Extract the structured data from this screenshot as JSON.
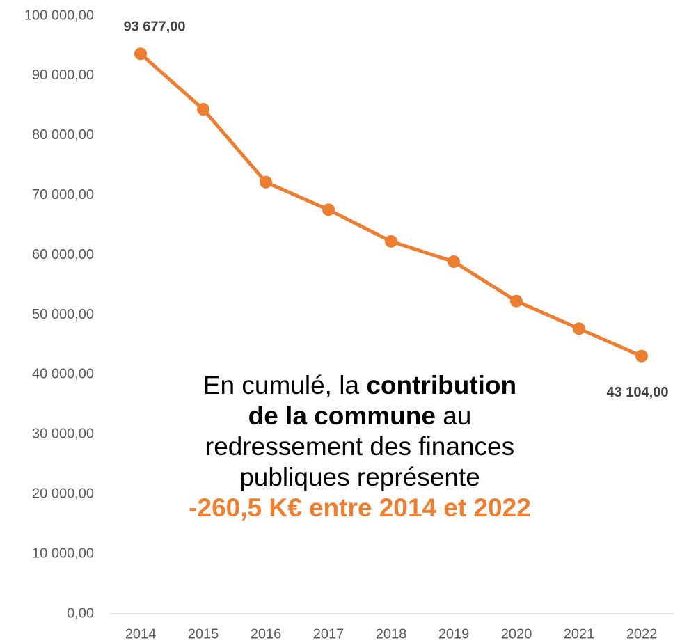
{
  "chart_data": {
    "type": "line",
    "categories": [
      "2014",
      "2015",
      "2016",
      "2017",
      "2018",
      "2019",
      "2020",
      "2021",
      "2022"
    ],
    "series": [
      {
        "color": "#ed7d31",
        "values": [
          93677,
          84400,
          72200,
          67600,
          62300,
          58900,
          52300,
          47700,
          43104
        ],
        "value_labels": [
          "93 677,00",
          null,
          null,
          null,
          null,
          null,
          null,
          null,
          "43 104,00"
        ]
      }
    ],
    "ylim": [
      0,
      100000
    ],
    "yticks": [
      {
        "value": 0,
        "label": "0,00"
      },
      {
        "value": 10000,
        "label": "10 000,00"
      },
      {
        "value": 20000,
        "label": "20 000,00"
      },
      {
        "value": 30000,
        "label": "30 000,00"
      },
      {
        "value": 40000,
        "label": "40 000,00"
      },
      {
        "value": 50000,
        "label": "50 000,00"
      },
      {
        "value": 60000,
        "label": "60 000,00"
      },
      {
        "value": 70000,
        "label": "70 000,00"
      },
      {
        "value": 80000,
        "label": "80 000,00"
      },
      {
        "value": 90000,
        "label": "90 000,00"
      },
      {
        "value": 100000,
        "label": "100 000,00"
      }
    ],
    "grid": false,
    "annotation": [
      [
        {
          "text": "En cumulé, la "
        },
        {
          "text": "contribution",
          "bold": true
        }
      ],
      [
        {
          "text": "de la commune",
          "bold": true
        },
        {
          "text": " au"
        }
      ],
      [
        {
          "text": "redressement des finances"
        }
      ],
      [
        {
          "text": "publiques représente"
        }
      ],
      [
        {
          "text": "-260,5 K€ entre 2014 et 2022",
          "bold": true,
          "color": "#ed7d31"
        }
      ]
    ]
  }
}
